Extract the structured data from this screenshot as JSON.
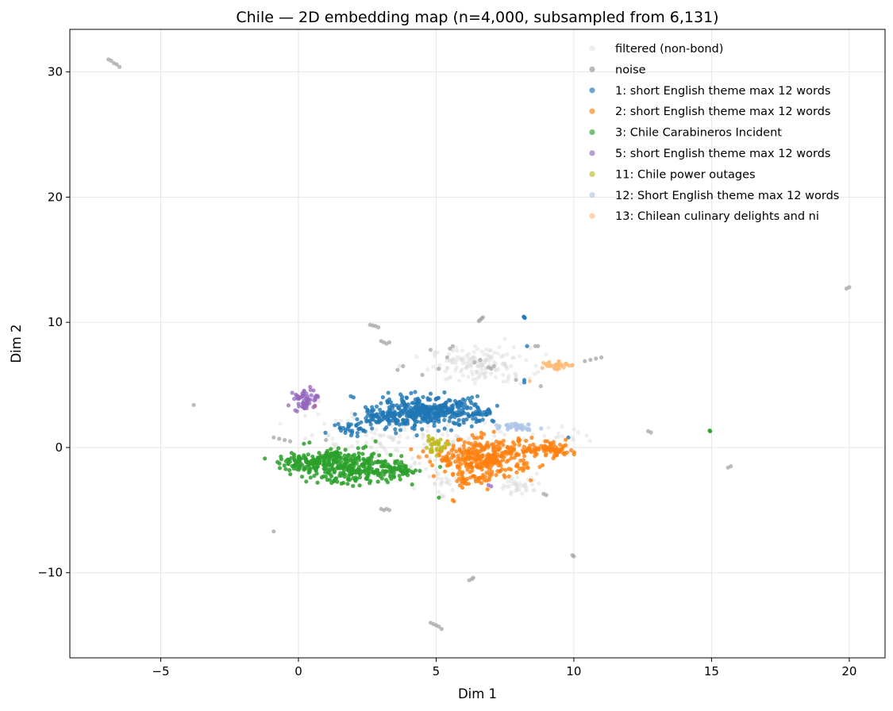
{
  "chart_data": {
    "type": "scatter",
    "title": "Chile — 2D embedding map (n=4,000, subsampled from 6,131)",
    "xlabel": "Dim 1",
    "ylabel": "Dim 2",
    "xlim": [
      -8.3,
      21.3
    ],
    "ylim": [
      -16.8,
      33.4
    ],
    "xticks": [
      -5,
      0,
      5,
      10,
      15,
      20
    ],
    "yticks": [
      -10,
      0,
      10,
      20,
      30
    ],
    "xtick_labels": [
      "−5",
      "0",
      "5",
      "10",
      "15",
      "20"
    ],
    "ytick_labels": [
      "−10",
      "0",
      "10",
      "20",
      "30"
    ],
    "grid": true,
    "legend_position": "top-right",
    "series": [
      {
        "name": "filtered (non-bond)",
        "color": "#d9d9d9",
        "opacity": 0.45,
        "clusters": [
          {
            "cx": 6.6,
            "cy": 6.6,
            "sx": 0.9,
            "sy": 0.7,
            "n": 160
          },
          {
            "cx": 8.1,
            "cy": -2.9,
            "sx": 0.4,
            "sy": 0.4,
            "n": 40
          },
          {
            "cx": 4.6,
            "cy": 0.4,
            "sx": 1.6,
            "sy": 1.3,
            "n": 120
          },
          {
            "cx": 2.2,
            "cy": 1.0,
            "sx": 1.2,
            "sy": 1.0,
            "n": 50
          },
          {
            "cx": 9.5,
            "cy": 1.0,
            "sx": 0.4,
            "sy": 0.4,
            "n": 15
          },
          {
            "cx": 5.2,
            "cy": -2.6,
            "sx": 0.4,
            "sy": 0.5,
            "n": 25
          }
        ]
      },
      {
        "name": "noise",
        "color": "#a6a6a6",
        "opacity": 0.75,
        "points": [
          [
            -6.9,
            31.0
          ],
          [
            -6.8,
            30.9
          ],
          [
            -6.7,
            30.7
          ],
          [
            -6.6,
            30.6
          ],
          [
            -6.5,
            30.4
          ],
          [
            20.0,
            12.8
          ],
          [
            19.9,
            12.7
          ],
          [
            15.7,
            -1.5
          ],
          [
            15.6,
            -1.6
          ],
          [
            12.8,
            1.2
          ],
          [
            12.7,
            1.3
          ],
          [
            10.0,
            -8.7
          ],
          [
            9.95,
            -8.6
          ],
          [
            -3.8,
            3.4
          ],
          [
            -0.9,
            -6.7
          ],
          [
            6.3,
            -10.5
          ],
          [
            6.2,
            -10.6
          ],
          [
            6.35,
            -10.4
          ],
          [
            4.8,
            -14.0
          ],
          [
            4.9,
            -14.1
          ],
          [
            5.0,
            -14.2
          ],
          [
            5.1,
            -14.3
          ],
          [
            5.2,
            -14.5
          ],
          [
            2.6,
            9.8
          ],
          [
            2.7,
            9.75
          ],
          [
            2.8,
            9.7
          ],
          [
            2.9,
            9.6
          ],
          [
            3.0,
            8.5
          ],
          [
            3.1,
            8.4
          ],
          [
            3.2,
            8.3
          ],
          [
            3.3,
            8.4
          ],
          [
            6.7,
            10.4
          ],
          [
            6.65,
            10.3
          ],
          [
            6.6,
            10.2
          ],
          [
            6.55,
            10.1
          ],
          [
            10.6,
            7.0
          ],
          [
            10.8,
            7.1
          ],
          [
            11.0,
            7.2
          ],
          [
            10.4,
            6.9
          ],
          [
            3.0,
            -4.9
          ],
          [
            3.1,
            -5.0
          ],
          [
            3.2,
            -4.9
          ],
          [
            3.3,
            -5.0
          ],
          [
            -0.9,
            0.8
          ],
          [
            -0.7,
            0.7
          ],
          [
            -0.5,
            0.6
          ],
          [
            -0.3,
            0.5
          ],
          [
            8.6,
            8.1
          ],
          [
            8.7,
            8.1
          ],
          [
            6.9,
            6.4
          ],
          [
            7.0,
            6.3
          ],
          [
            7.1,
            6.5
          ],
          [
            6.6,
            7.0
          ],
          [
            6.4,
            6.8
          ],
          [
            5.5,
            7.9
          ],
          [
            5.6,
            8.1
          ],
          [
            4.8,
            7.8
          ],
          [
            3.6,
            6.2
          ],
          [
            3.8,
            6.5
          ],
          [
            4.5,
            5.8
          ],
          [
            8.9,
            -3.7
          ],
          [
            9.0,
            -3.8
          ],
          [
            1.0,
            0.6
          ],
          [
            5.1,
            6.3
          ],
          [
            5.4,
            7.2
          ],
          [
            7.9,
            5.4
          ],
          [
            8.8,
            4.9
          ]
        ]
      },
      {
        "name": "1: short English theme max 12 words",
        "color": "#1f77b4",
        "opacity": 0.8,
        "clusters": [
          {
            "cx": 4.6,
            "cy": 2.8,
            "sx": 0.9,
            "sy": 0.55,
            "n": 380
          },
          {
            "cx": 3.0,
            "cy": 2.4,
            "sx": 0.5,
            "sy": 0.3,
            "n": 60
          },
          {
            "cx": 2.0,
            "cy": 1.5,
            "sx": 0.4,
            "sy": 0.3,
            "n": 30
          },
          {
            "cx": 6.5,
            "cy": 2.8,
            "sx": 0.3,
            "sy": 0.4,
            "n": 35
          }
        ],
        "points": [
          [
            8.2,
            10.4
          ],
          [
            8.22,
            10.35
          ],
          [
            8.18,
            10.45
          ],
          [
            8.2,
            5.2
          ],
          [
            8.2,
            5.4
          ],
          [
            8.3,
            8.1
          ],
          [
            9.8,
            0.8
          ],
          [
            1.9,
            4.1
          ],
          [
            2.0,
            4.0
          ],
          [
            6.3,
            4.0
          ],
          [
            6.5,
            4.1
          ],
          [
            4.8,
            4.3
          ],
          [
            5.3,
            4.4
          ]
        ]
      },
      {
        "name": "2: short English theme max 12 words",
        "color": "#ff7f0e",
        "opacity": 0.8,
        "clusters": [
          {
            "cx": 6.8,
            "cy": -0.8,
            "sx": 0.9,
            "sy": 0.75,
            "n": 340
          },
          {
            "cx": 9.1,
            "cy": -0.2,
            "sx": 0.5,
            "sy": 0.25,
            "n": 70
          },
          {
            "cx": 6.3,
            "cy": -2.6,
            "sx": 0.4,
            "sy": 0.3,
            "n": 30
          }
        ],
        "points": [
          [
            5.6,
            -4.2
          ],
          [
            5.65,
            -4.3
          ],
          [
            0.6,
            3.3
          ]
        ]
      },
      {
        "name": "3: Chile Carabineros Incident",
        "color": "#2ca02c",
        "opacity": 0.85,
        "clusters": [
          {
            "cx": 2.1,
            "cy": -1.6,
            "sx": 0.85,
            "sy": 0.65,
            "n": 260
          },
          {
            "cx": 0.3,
            "cy": -1.3,
            "sx": 0.5,
            "sy": 0.35,
            "n": 110
          },
          {
            "cx": 3.7,
            "cy": -1.9,
            "sx": 0.4,
            "sy": 0.25,
            "n": 40
          },
          {
            "cx": 1.2,
            "cy": -0.6,
            "sx": 0.3,
            "sy": 0.2,
            "n": 30
          }
        ],
        "points": [
          [
            14.95,
            1.3
          ],
          [
            14.93,
            1.35
          ],
          [
            5.1,
            -4.0
          ],
          [
            0.4,
            0.4
          ],
          [
            0.2,
            0.3
          ],
          [
            2.8,
            0.5
          ]
        ]
      },
      {
        "name": "5: short English theme max 12 words",
        "color": "#9467bd",
        "opacity": 0.75,
        "clusters": [
          {
            "cx": 0.2,
            "cy": 3.8,
            "sx": 0.18,
            "sy": 0.45,
            "n": 55
          },
          {
            "cx": 0.6,
            "cy": 4.0,
            "sx": 0.1,
            "sy": 0.1,
            "n": 6
          }
        ],
        "points": [
          [
            6.9,
            -3.0
          ],
          [
            7.0,
            -3.1
          ]
        ]
      },
      {
        "name": "11: Chile power outages",
        "color": "#bcbd22",
        "opacity": 0.85,
        "clusters": [
          {
            "cx": 5.0,
            "cy": 0.2,
            "sx": 0.25,
            "sy": 0.3,
            "n": 35
          }
        ]
      },
      {
        "name": "12: Short English theme max 12 words",
        "color": "#aec7e8",
        "opacity": 0.8,
        "clusters": [
          {
            "cx": 8.0,
            "cy": 1.7,
            "sx": 0.3,
            "sy": 0.15,
            "n": 40
          }
        ]
      },
      {
        "name": "13: Chilean culinary delights and ni",
        "color": "#ffbb78",
        "opacity": 0.8,
        "clusters": [
          {
            "cx": 9.3,
            "cy": 6.6,
            "sx": 0.25,
            "sy": 0.18,
            "n": 40
          }
        ],
        "points": [
          [
            8.4,
            5.3
          ],
          [
            4.4,
            -0.8
          ]
        ]
      }
    ]
  }
}
